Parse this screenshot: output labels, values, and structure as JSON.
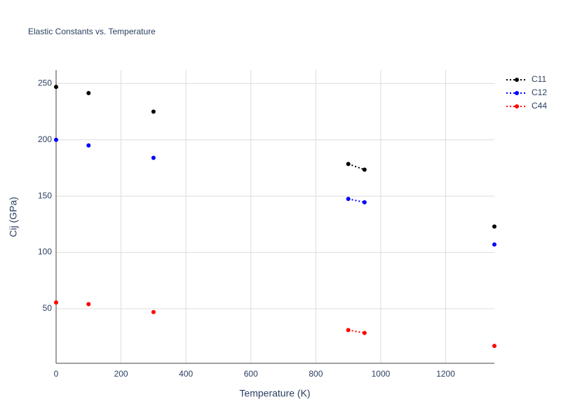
{
  "chart_data": {
    "type": "line",
    "title": "Elastic Constants vs. Temperature",
    "x_label": "Temperature (K)",
    "y_label": "Cij (GPa)",
    "x": [
      0,
      null,
      100,
      null,
      300,
      null,
      900,
      950,
      null,
      1350
    ],
    "series": [
      {
        "name": "C11",
        "color": "#000000",
        "values": [
          247,
          null,
          241.5,
          null,
          225,
          null,
          178.5,
          173.5,
          null,
          123
        ]
      },
      {
        "name": "C12",
        "color": "#0000ff",
        "values": [
          200,
          null,
          195,
          null,
          184,
          null,
          147.5,
          144.5,
          null,
          107
        ]
      },
      {
        "name": "C44",
        "color": "#ff0000",
        "values": [
          55.5,
          null,
          54,
          null,
          47,
          null,
          31,
          28.5,
          null,
          17
        ]
      }
    ],
    "xlim": [
      0,
      1350
    ],
    "ylim": [
      1.5,
      262
    ],
    "xticks": [
      0,
      200,
      400,
      600,
      800,
      1000,
      1200
    ],
    "yticks": [
      50,
      100,
      150,
      200,
      250
    ],
    "grid": true,
    "legend": "right"
  }
}
